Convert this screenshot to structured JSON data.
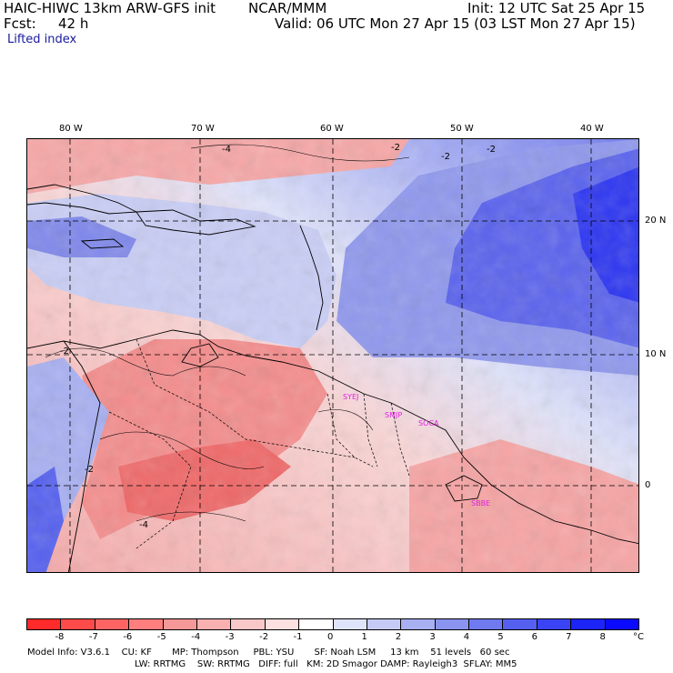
{
  "header": {
    "model": "HAIC-HIWC 13km ARW-GFS init",
    "org": "NCAR/MMM",
    "init": "Init: 12 UTC Sat 25 Apr 15",
    "fcst_label": "Fcst:",
    "fcst_value": "42 h",
    "valid": "Valid: 06 UTC Mon 27 Apr 15 (03 LST Mon 27 Apr 15)",
    "field": "Lifted index"
  },
  "lon_labels": [
    "80 W",
    "70 W",
    "60 W",
    "50 W",
    "40 W"
  ],
  "lat_labels": [
    "20 N",
    "10 N",
    "0"
  ],
  "contour_labels": [
    "-4",
    "-2",
    "-2",
    "-2",
    "-2",
    "-4",
    "-2"
  ],
  "stations": [
    "SYEJ",
    "SMJP",
    "SOCA",
    "SBBE"
  ],
  "colorbar": {
    "labels": [
      "-8",
      "-7",
      "-6",
      "-5",
      "-4",
      "-3",
      "-2",
      "-1",
      "0",
      "1",
      "2",
      "3",
      "4",
      "5",
      "6",
      "7",
      "8"
    ],
    "unit": "°C",
    "colors": [
      "#ff2a2a",
      "#ff4a4a",
      "#ff6464",
      "#ff7e7e",
      "#f79898",
      "#f8b0b0",
      "#fac8c8",
      "#fde0e0",
      "#ffffff",
      "#e0e4fb",
      "#c6cbf6",
      "#a8b0f2",
      "#8a94ee",
      "#6f7af0",
      "#5560f0",
      "#3a44f4",
      "#1c24f6",
      "#0a0aff"
    ]
  },
  "footer": {
    "line1": "Model Info: V3.6.1    CU: KF       MP: Thompson     PBL: YSU       SF: Noah LSM     13 km    51 levels   60 sec",
    "line2": "LW: RRTMG    SW: RRTMG   DIFF: full   KM: 2D Smagor DAMP: Rayleigh3  SFLAY: MM5"
  }
}
